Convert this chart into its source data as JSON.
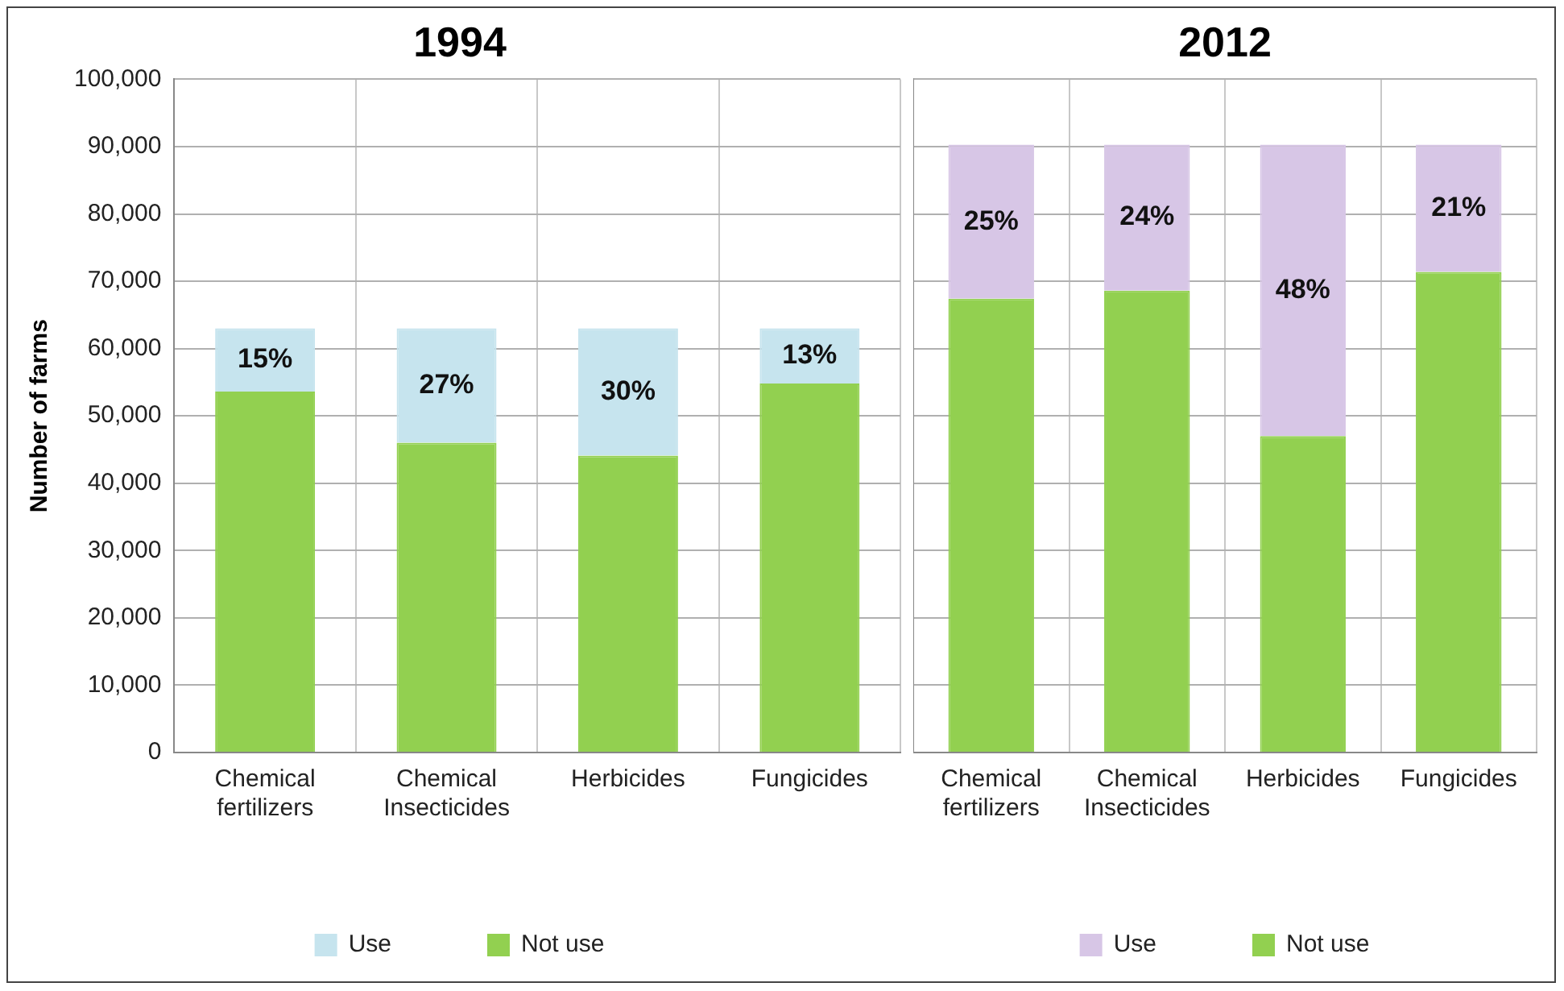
{
  "chart_data": [
    {
      "type": "bar",
      "title": "1994",
      "ylabel": "Number of farms",
      "categories": [
        "Chemical fertilizers",
        "Chemical Insecticides",
        "Herbicides",
        "Fungicides"
      ],
      "stacked": true,
      "ylim": [
        0,
        100000
      ],
      "yticks": [
        0,
        {
          "value": 10000,
          "label": "10,000"
        },
        {
          "value": 20000,
          "label": "20,000"
        },
        {
          "value": 30000,
          "label": "30,000"
        },
        {
          "value": 40000,
          "label": "40,000"
        },
        {
          "value": 50000,
          "label": "50,000"
        },
        {
          "value": 60000,
          "label": "60,000"
        },
        {
          "value": 70000,
          "label": "70,000"
        },
        {
          "value": 80000,
          "label": "80,000"
        },
        {
          "value": 90000,
          "label": "90,000"
        },
        {
          "value": 100000,
          "label": "100,000"
        }
      ],
      "grid": true,
      "legend": "bottom",
      "series": [
        {
          "name": "Not use",
          "color": "#92d050",
          "values": [
            53600,
            46000,
            44100,
            54800
          ]
        },
        {
          "name": "Use",
          "color": "#c6e4ee",
          "values": [
            9400,
            17000,
            18900,
            8200
          ]
        }
      ],
      "annotations": [
        "15%",
        "27%",
        "30%",
        "13%"
      ]
    },
    {
      "type": "bar",
      "title": "2012",
      "categories": [
        "Chemical fertilizers",
        "Chemical Insecticides",
        "Herbicides",
        "Fungicides"
      ],
      "stacked": true,
      "ylim": [
        0,
        100000
      ],
      "yticks": [
        0,
        10000,
        20000,
        30000,
        40000,
        50000,
        60000,
        70000,
        80000,
        90000,
        100000
      ],
      "grid": true,
      "legend": "bottom",
      "tick_labels": "x",
      "series": [
        {
          "name": "Not use",
          "color": "#92d050",
          "values": [
            67400,
            68600,
            47000,
            71400
          ]
        },
        {
          "name": "Use",
          "color": "#d7c6e6",
          "values": [
            22900,
            21700,
            43300,
            18900
          ]
        }
      ],
      "annotations": [
        "25%",
        "24%",
        "48%",
        "21%"
      ]
    }
  ]
}
